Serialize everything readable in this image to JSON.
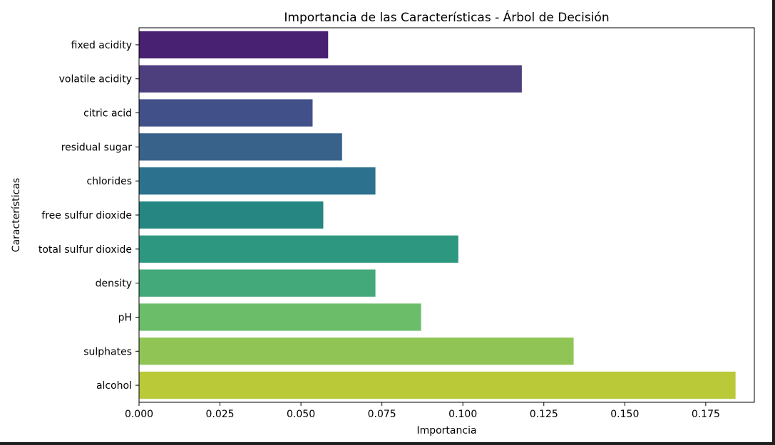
{
  "chart_data": {
    "type": "bar",
    "orientation": "horizontal",
    "title": "Importancia de las Características - Árbol de Decisión",
    "xlabel": "Importancia",
    "ylabel": "Características",
    "categories": [
      "fixed acidity",
      "volatile acidity",
      "citric acid",
      "residual sugar",
      "chlorides",
      "free sulfur dioxide",
      "total sulfur dioxide",
      "density",
      "pH",
      "sulphates",
      "alcohol"
    ],
    "values": [
      0.0584,
      0.1182,
      0.0536,
      0.0627,
      0.073,
      0.0569,
      0.0986,
      0.073,
      0.0871,
      0.1342,
      0.1842
    ],
    "colors": [
      "#482172",
      "#4d3e7e",
      "#42508a",
      "#38628a",
      "#2c728e",
      "#268682",
      "#2d977f",
      "#44a97a",
      "#6bbd6a",
      "#90c555",
      "#b9c938"
    ],
    "xlim": [
      0,
      0.19
    ],
    "xticks": [
      "0.000",
      "0.025",
      "0.050",
      "0.075",
      "0.100",
      "0.125",
      "0.150",
      "0.175"
    ],
    "xtick_values": [
      0,
      0.025,
      0.05,
      0.075,
      0.1,
      0.125,
      0.15,
      0.175
    ],
    "grid": false,
    "legend": "none"
  }
}
